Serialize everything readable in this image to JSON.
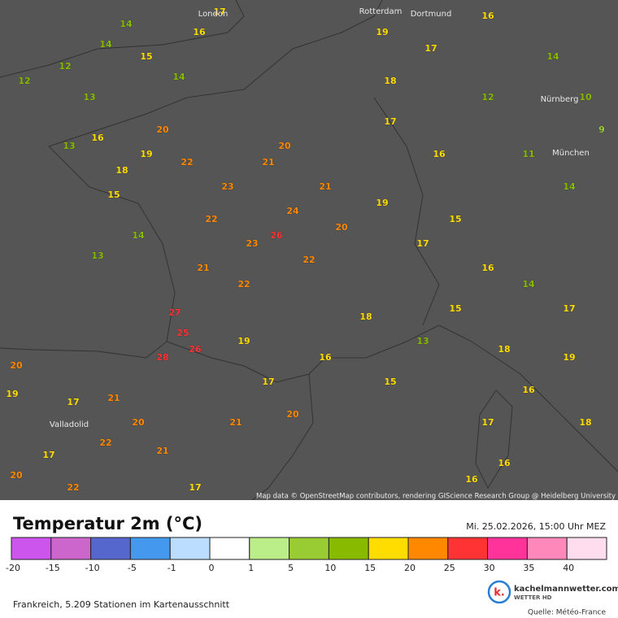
{
  "map": {
    "attribution": "Map data © OpenStreetMap contributors, rendering GIScience Research Group @ Heidelberg University",
    "cities": [
      "London",
      "Rotterdam",
      "Dortmund",
      "Nürnberg",
      "München",
      "Valladolid"
    ],
    "stations": [
      12,
      14,
      15,
      16,
      14,
      12,
      14,
      17,
      13,
      13,
      16,
      18,
      19,
      15,
      20,
      14,
      13,
      22,
      23,
      21,
      24,
      23,
      22,
      21,
      22,
      26,
      22,
      20,
      21,
      20,
      27,
      28,
      26,
      25,
      19,
      17,
      20,
      21,
      16,
      20,
      19,
      17,
      21,
      17,
      22,
      20,
      20,
      22,
      21,
      17,
      19,
      17,
      16,
      14,
      10,
      12,
      11,
      14,
      16,
      17,
      9,
      18,
      19,
      17,
      15,
      16,
      14,
      17,
      15,
      13,
      18,
      15,
      18,
      19,
      16,
      18,
      17,
      16,
      16
    ]
  },
  "panel": {
    "title": "Temperatur 2m (°C)",
    "datetime": "Mi. 25.02.2026, 15:00 Uhr MEZ",
    "legend": {
      "ticks": [
        "-20",
        "-15",
        "-10",
        "-5",
        "-1",
        "0",
        "1",
        "5",
        "10",
        "15",
        "20",
        "25",
        "30",
        "35",
        "40"
      ],
      "tick_values": [
        -20,
        -15,
        -10,
        -5,
        -1,
        0,
        1,
        5,
        10,
        15,
        20,
        25,
        30,
        35,
        40
      ],
      "colors": [
        "#cc55ee",
        "#cc66cc",
        "#5566cc",
        "#4499ee",
        "#bbddff",
        "#ffffff",
        "#bbee88",
        "#99cc33",
        "#88bb00",
        "#ffdd00",
        "#ff8800",
        "#ff3333",
        "#ff3399",
        "#ff88bb",
        "#ffddee"
      ]
    },
    "footer": "Frankreich, 5.209 Stationen im Kartenausschnitt",
    "brand": "kachelmannwetter.com",
    "brand_sub": "WETTER HD",
    "source": "Quelle: Météo-France"
  }
}
